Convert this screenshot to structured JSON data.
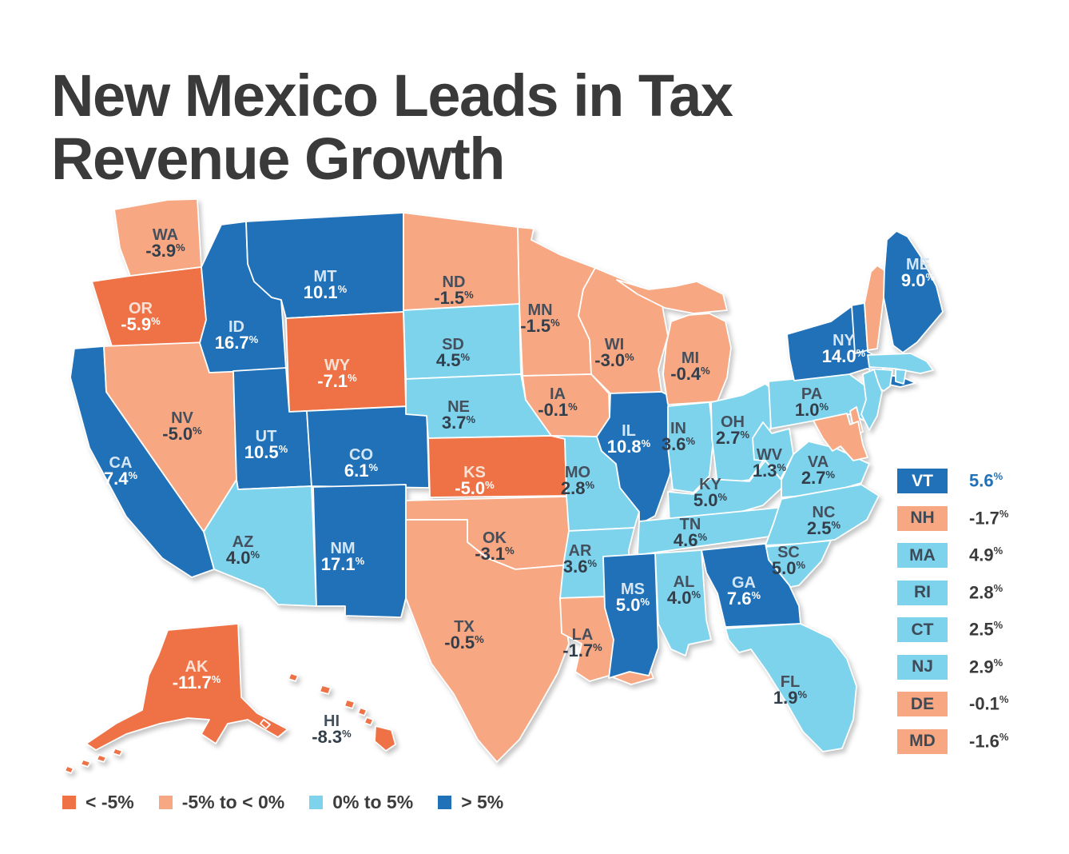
{
  "title": {
    "line1": "New Mexico Leads in Tax",
    "line2": "Revenue Growth"
  },
  "palette": {
    "lt_minus5": "#EE7245",
    "minus5_to_0": "#F7A781",
    "zero_to_5": "#7ED3EC",
    "gt_5": "#2071B8"
  },
  "text_colors": {
    "dark_fill_abbr": "#d5e6f5",
    "dark_fill_value": "#ffffff",
    "light_fill_abbr": "#44505e",
    "light_fill_value": "#333e4b",
    "vt_value_blue": "#2071B8"
  },
  "chart_data": {
    "type": "heatmap",
    "subtype": "us-state-choropleth",
    "title": "New Mexico Leads in Tax Revenue Growth",
    "metric": "tax revenue growth",
    "value_unit": "%",
    "legend_position": "bottom",
    "bins": [
      {
        "label": "< -5%",
        "key": "lt_minus5",
        "color": "#EE7245"
      },
      {
        "label": "-5% to < 0%",
        "key": "minus5_to_0",
        "color": "#F7A781"
      },
      {
        "label": "0% to 5%",
        "key": "zero_to_5",
        "color": "#7ED3EC"
      },
      {
        "label": "> 5%",
        "key": "gt_5",
        "color": "#2071B8"
      }
    ],
    "states": [
      {
        "code": "WA",
        "value": -3.9,
        "display": "-3.9%",
        "bin": "minus5_to_0"
      },
      {
        "code": "OR",
        "value": -5.9,
        "display": "-5.9%",
        "bin": "lt_minus5"
      },
      {
        "code": "CA",
        "value": 7.4,
        "display": "7.4%",
        "bin": "gt_5"
      },
      {
        "code": "NV",
        "value": -5.0,
        "display": "-5.0%",
        "bin": "minus5_to_0"
      },
      {
        "code": "ID",
        "value": 16.7,
        "display": "16.7%",
        "bin": "gt_5"
      },
      {
        "code": "MT",
        "value": 10.1,
        "display": "10.1%",
        "bin": "gt_5"
      },
      {
        "code": "WY",
        "value": -7.1,
        "display": "-7.1%",
        "bin": "lt_minus5"
      },
      {
        "code": "UT",
        "value": 10.5,
        "display": "10.5%",
        "bin": "gt_5"
      },
      {
        "code": "CO",
        "value": 6.1,
        "display": "6.1%",
        "bin": "gt_5"
      },
      {
        "code": "AZ",
        "value": 4.0,
        "display": "4.0%",
        "bin": "zero_to_5"
      },
      {
        "code": "NM",
        "value": 17.1,
        "display": "17.1%",
        "bin": "gt_5"
      },
      {
        "code": "ND",
        "value": -1.5,
        "display": "-1.5%",
        "bin": "minus5_to_0"
      },
      {
        "code": "SD",
        "value": 4.5,
        "display": "4.5%",
        "bin": "zero_to_5"
      },
      {
        "code": "NE",
        "value": 3.7,
        "display": "3.7%",
        "bin": "zero_to_5"
      },
      {
        "code": "KS",
        "value": -5.0,
        "display": "-5.0%",
        "bin": "lt_minus5"
      },
      {
        "code": "OK",
        "value": -3.1,
        "display": "-3.1%",
        "bin": "minus5_to_0"
      },
      {
        "code": "TX",
        "value": -0.5,
        "display": "-0.5%",
        "bin": "minus5_to_0"
      },
      {
        "code": "MN",
        "value": -1.5,
        "display": "-1.5%",
        "bin": "minus5_to_0"
      },
      {
        "code": "IA",
        "value": -0.1,
        "display": "-0.1%",
        "bin": "minus5_to_0"
      },
      {
        "code": "MO",
        "value": 2.8,
        "display": "2.8%",
        "bin": "zero_to_5"
      },
      {
        "code": "AR",
        "value": 3.6,
        "display": "3.6%",
        "bin": "zero_to_5"
      },
      {
        "code": "LA",
        "value": -1.7,
        "display": "-1.7%",
        "bin": "minus5_to_0"
      },
      {
        "code": "WI",
        "value": -3.0,
        "display": "-3.0%",
        "bin": "minus5_to_0"
      },
      {
        "code": "IL",
        "value": 10.8,
        "display": "10.8%",
        "bin": "gt_5"
      },
      {
        "code": "MI",
        "value": -0.4,
        "display": "-0.4%",
        "bin": "minus5_to_0"
      },
      {
        "code": "IN",
        "value": 3.6,
        "display": "3.6%",
        "bin": "zero_to_5"
      },
      {
        "code": "OH",
        "value": 2.7,
        "display": "2.7%",
        "bin": "zero_to_5"
      },
      {
        "code": "KY",
        "value": 5.0,
        "display": "5.0%",
        "bin": "zero_to_5"
      },
      {
        "code": "TN",
        "value": 4.6,
        "display": "4.6%",
        "bin": "zero_to_5"
      },
      {
        "code": "WV",
        "value": 1.3,
        "display": "1.3%",
        "bin": "zero_to_5"
      },
      {
        "code": "VA",
        "value": 2.7,
        "display": "2.7%",
        "bin": "zero_to_5"
      },
      {
        "code": "NC",
        "value": 2.5,
        "display": "2.5%",
        "bin": "zero_to_5"
      },
      {
        "code": "SC",
        "value": 5.0,
        "display": "5.0%",
        "bin": "zero_to_5"
      },
      {
        "code": "GA",
        "value": 7.6,
        "display": "7.6%",
        "bin": "gt_5"
      },
      {
        "code": "AL",
        "value": 4.0,
        "display": "4.0%",
        "bin": "zero_to_5"
      },
      {
        "code": "MS",
        "value": 5.0,
        "display": "5.0%",
        "bin": "gt_5"
      },
      {
        "code": "FL",
        "value": 1.9,
        "display": "1.9%",
        "bin": "zero_to_5"
      },
      {
        "code": "PA",
        "value": 1.0,
        "display": "1.0%",
        "bin": "zero_to_5"
      },
      {
        "code": "NY",
        "value": 14.0,
        "display": "14.0%",
        "bin": "gt_5"
      },
      {
        "code": "VT",
        "value": 5.6,
        "display": "5.6%",
        "bin": "gt_5"
      },
      {
        "code": "NH",
        "value": -1.7,
        "display": "-1.7%",
        "bin": "minus5_to_0"
      },
      {
        "code": "ME",
        "value": 9.0,
        "display": "9.0%",
        "bin": "gt_5"
      },
      {
        "code": "MA",
        "value": 4.9,
        "display": "4.9%",
        "bin": "zero_to_5"
      },
      {
        "code": "RI",
        "value": 2.8,
        "display": "2.8%",
        "bin": "zero_to_5"
      },
      {
        "code": "CT",
        "value": 2.5,
        "display": "2.5%",
        "bin": "zero_to_5"
      },
      {
        "code": "NJ",
        "value": 2.9,
        "display": "2.9%",
        "bin": "zero_to_5"
      },
      {
        "code": "DE",
        "value": -0.1,
        "display": "-0.1%",
        "bin": "minus5_to_0"
      },
      {
        "code": "MD",
        "value": -1.6,
        "display": "-1.6%",
        "bin": "minus5_to_0"
      },
      {
        "code": "AK",
        "value": -11.7,
        "display": "-11.7%",
        "bin": "lt_minus5"
      },
      {
        "code": "HI",
        "value": -8.3,
        "display": "-8.3%",
        "bin": "lt_minus5"
      }
    ],
    "side_list": [
      "VT",
      "NH",
      "MA",
      "RI",
      "CT",
      "NJ",
      "DE",
      "MD"
    ]
  }
}
